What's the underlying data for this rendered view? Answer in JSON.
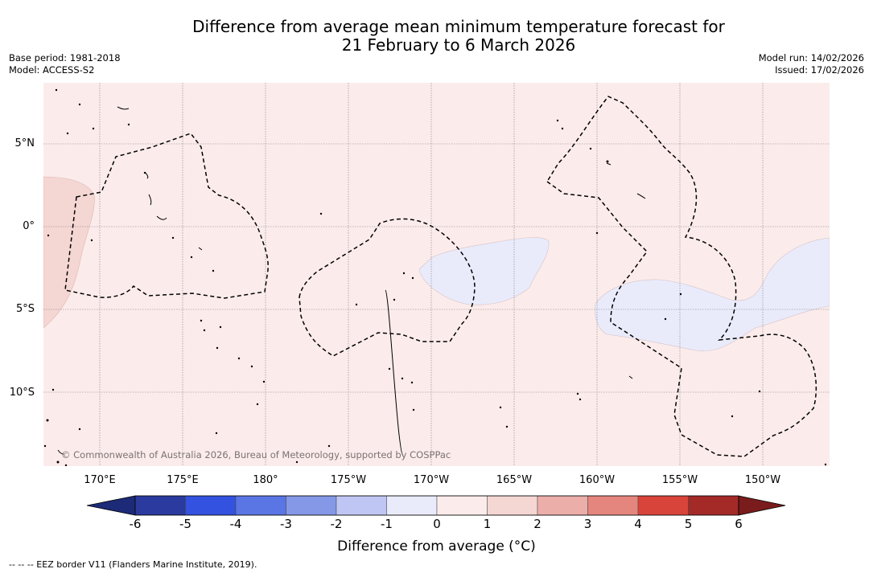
{
  "title": {
    "line1": "Difference from average mean minimum temperature forecast for",
    "line2": "21 February to 6 March 2026"
  },
  "meta_left": {
    "base_period": "Base period: 1981-2018",
    "model": "Model: ACCESS-S2"
  },
  "meta_right": {
    "model_run": "Model run: 14/02/2026",
    "issued": "Issued: 17/02/2026"
  },
  "map": {
    "copyright": "© Commonwealth of Australia 2026, Bureau of Meteorology, supported by COSPPac",
    "lat_labels": [
      "5°N",
      "0°",
      "5°S",
      "10°S"
    ],
    "lon_labels": [
      "170°E",
      "175°E",
      "180°",
      "175°W",
      "170°W",
      "165°W",
      "160°W",
      "155°W",
      "150°W"
    ],
    "colors": {
      "background_0_1": "#fbeceb",
      "band_1_2": "#f4d6d3",
      "band_minus1_0": "#e9ebfb"
    }
  },
  "colorbar": {
    "ticks": [
      "-6",
      "-5",
      "-4",
      "-3",
      "-2",
      "-1",
      "0",
      "1",
      "2",
      "3",
      "4",
      "5",
      "6"
    ],
    "colors": [
      "#2a3a9e",
      "#3352e0",
      "#5a75e4",
      "#8598e8",
      "#bfc6f4",
      "#e9ebfb",
      "#fbeceb",
      "#f4d6d3",
      "#ecaea9",
      "#e5867e",
      "#d9443a",
      "#a42a28"
    ],
    "low_extend_color": "#1c2a78",
    "high_extend_color": "#7a1c1c",
    "title": "Difference from average (°C)"
  },
  "footer": "--  --  -- EEZ border V11 (Flanders Marine Institute, 2019)."
}
